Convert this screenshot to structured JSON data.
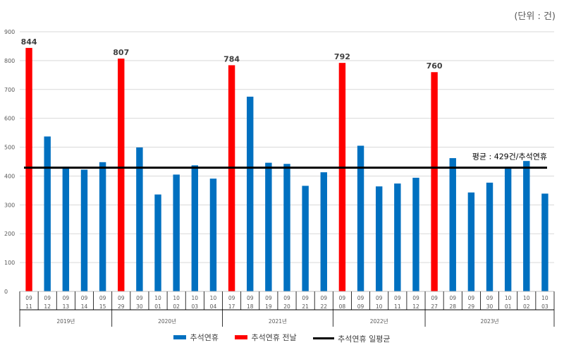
{
  "unit_label": "(단위 : 건)",
  "colors": {
    "normal": "#0070c0",
    "eve": "#ff0000",
    "avg": "#000000",
    "grid": "#d9d9d9"
  },
  "chart_data": {
    "type": "bar",
    "ylim": [
      0,
      900
    ],
    "yticks": [
      0,
      100,
      200,
      300,
      400,
      500,
      600,
      700,
      800,
      900
    ],
    "average": 429,
    "average_label": "평균 : 429건/추석연휴",
    "groups": [
      {
        "year": "2019년",
        "days": [
          {
            "m": "09",
            "d": "11",
            "v": 844,
            "type": "eve"
          },
          {
            "m": "09",
            "d": "12",
            "v": 537,
            "type": "normal"
          },
          {
            "m": "09",
            "d": "13",
            "v": 432,
            "type": "normal"
          },
          {
            "m": "09",
            "d": "14",
            "v": 422,
            "type": "normal"
          },
          {
            "m": "09",
            "d": "15",
            "v": 448,
            "type": "normal"
          }
        ]
      },
      {
        "year": "2020년",
        "days": [
          {
            "m": "09",
            "d": "29",
            "v": 807,
            "type": "eve"
          },
          {
            "m": "09",
            "d": "30",
            "v": 499,
            "type": "normal"
          },
          {
            "m": "10",
            "d": "01",
            "v": 336,
            "type": "normal"
          },
          {
            "m": "10",
            "d": "02",
            "v": 405,
            "type": "normal"
          },
          {
            "m": "10",
            "d": "03",
            "v": 437,
            "type": "normal"
          },
          {
            "m": "10",
            "d": "04",
            "v": 391,
            "type": "normal"
          }
        ]
      },
      {
        "year": "2021년",
        "days": [
          {
            "m": "09",
            "d": "17",
            "v": 784,
            "type": "eve"
          },
          {
            "m": "09",
            "d": "18",
            "v": 675,
            "type": "normal"
          },
          {
            "m": "09",
            "d": "19",
            "v": 446,
            "type": "normal"
          },
          {
            "m": "09",
            "d": "20",
            "v": 442,
            "type": "normal"
          },
          {
            "m": "09",
            "d": "21",
            "v": 366,
            "type": "normal"
          },
          {
            "m": "09",
            "d": "22",
            "v": 413,
            "type": "normal"
          }
        ]
      },
      {
        "year": "2022년",
        "days": [
          {
            "m": "09",
            "d": "08",
            "v": 792,
            "type": "eve"
          },
          {
            "m": "09",
            "d": "09",
            "v": 505,
            "type": "normal"
          },
          {
            "m": "09",
            "d": "10",
            "v": 364,
            "type": "normal"
          },
          {
            "m": "09",
            "d": "11",
            "v": 374,
            "type": "normal"
          },
          {
            "m": "09",
            "d": "12",
            "v": 394,
            "type": "normal"
          }
        ]
      },
      {
        "year": "2023년",
        "days": [
          {
            "m": "09",
            "d": "27",
            "v": 760,
            "type": "eve"
          },
          {
            "m": "09",
            "d": "28",
            "v": 462,
            "type": "normal"
          },
          {
            "m": "09",
            "d": "29",
            "v": 343,
            "type": "normal"
          },
          {
            "m": "09",
            "d": "30",
            "v": 377,
            "type": "normal"
          },
          {
            "m": "10",
            "d": "01",
            "v": 432,
            "type": "normal"
          },
          {
            "m": "10",
            "d": "02",
            "v": 452,
            "type": "normal"
          },
          {
            "m": "10",
            "d": "03",
            "v": 339,
            "type": "normal"
          }
        ]
      }
    ],
    "legend": [
      {
        "key": "normal",
        "label": "추석연휴"
      },
      {
        "key": "eve",
        "label": "추석연휴 전날"
      },
      {
        "key": "avg",
        "label": "추석연휴 일평균"
      }
    ]
  }
}
